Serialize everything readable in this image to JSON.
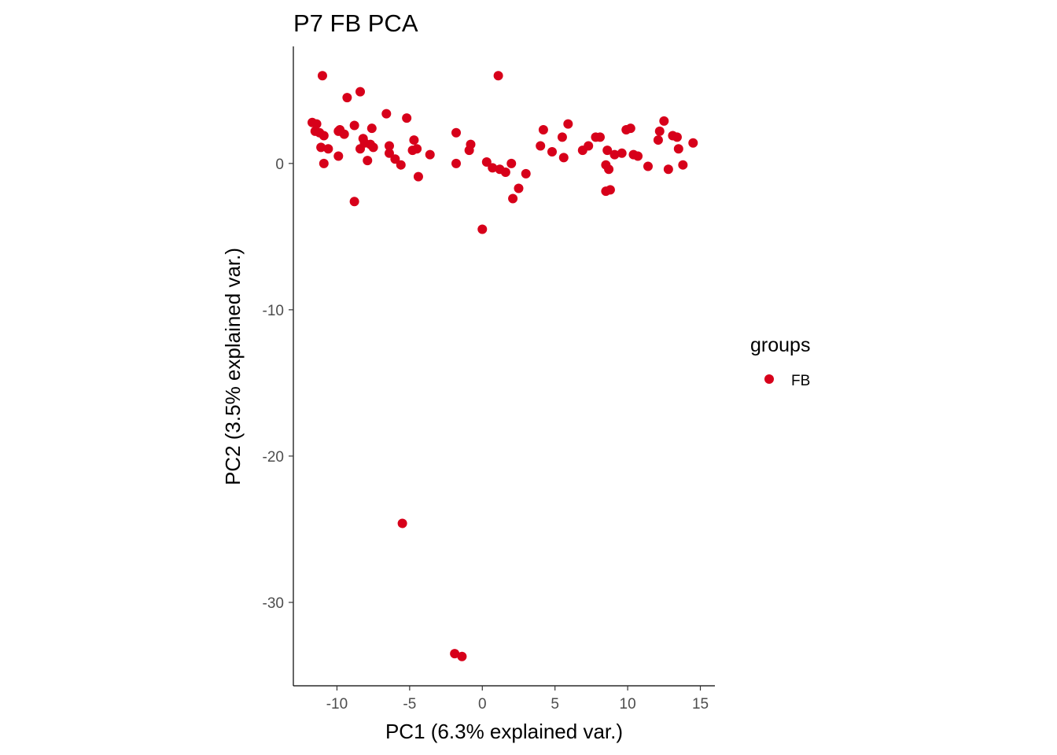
{
  "chart_data": {
    "type": "scatter",
    "title": "P7 FB PCA",
    "xlabel": "PC1 (6.3% explained var.)",
    "ylabel": "PC2 (3.5% explained var.)",
    "xlim": [
      -13,
      16
    ],
    "ylim": [
      -35.7,
      8
    ],
    "x_ticks": [
      -10,
      -5,
      0,
      5,
      10,
      15
    ],
    "y_ticks": [
      0,
      -10,
      -20,
      -30
    ],
    "x_tick_labels": [
      "-10",
      "-5",
      "0",
      "5",
      "10",
      "15"
    ],
    "y_tick_labels": [
      "0",
      "-10",
      "-20",
      "-30"
    ],
    "grid": false,
    "legend": {
      "title": "groups",
      "position": "right",
      "entries": [
        "FB"
      ]
    },
    "colors": {
      "FB": "#d7001a"
    },
    "series": [
      {
        "name": "FB",
        "points": [
          [
            -11.7,
            2.8
          ],
          [
            -11.4,
            2.7
          ],
          [
            -11.5,
            2.2
          ],
          [
            -11.2,
            2.1
          ],
          [
            -10.9,
            1.9
          ],
          [
            -11.1,
            1.1
          ],
          [
            -10.6,
            1.0
          ],
          [
            -10.9,
            0.0
          ],
          [
            -11.0,
            6.0
          ],
          [
            -9.3,
            4.5
          ],
          [
            -8.4,
            4.9
          ],
          [
            -9.9,
            2.2
          ],
          [
            -9.8,
            2.3
          ],
          [
            -9.5,
            2.0
          ],
          [
            -8.8,
            2.6
          ],
          [
            -8.2,
            1.7
          ],
          [
            -8.1,
            1.4
          ],
          [
            -7.7,
            1.3
          ],
          [
            -7.6,
            2.4
          ],
          [
            -7.5,
            1.1
          ],
          [
            -8.4,
            1.0
          ],
          [
            -9.9,
            0.5
          ],
          [
            -7.9,
            0.2
          ],
          [
            -8.8,
            -2.6
          ],
          [
            -6.6,
            3.4
          ],
          [
            -6.4,
            1.2
          ],
          [
            -6.4,
            0.7
          ],
          [
            -6.0,
            0.3
          ],
          [
            -5.6,
            -0.1
          ],
          [
            -5.2,
            3.1
          ],
          [
            -4.7,
            1.6
          ],
          [
            -4.8,
            0.9
          ],
          [
            -4.5,
            1.0
          ],
          [
            -4.4,
            -0.9
          ],
          [
            -3.6,
            0.6
          ],
          [
            -1.8,
            2.1
          ],
          [
            -1.8,
            0.0
          ],
          [
            -0.9,
            0.9
          ],
          [
            -0.8,
            1.3
          ],
          [
            0.3,
            0.1
          ],
          [
            0.7,
            -0.3
          ],
          [
            1.2,
            -0.4
          ],
          [
            1.6,
            -0.6
          ],
          [
            2.0,
            0.0
          ],
          [
            2.1,
            -2.4
          ],
          [
            2.5,
            -1.7
          ],
          [
            3.0,
            -0.7
          ],
          [
            1.1,
            6.0
          ],
          [
            0.0,
            -4.5
          ],
          [
            -5.5,
            -24.6
          ],
          [
            -1.9,
            -33.5
          ],
          [
            -1.4,
            -33.7
          ],
          [
            4.0,
            1.2
          ],
          [
            4.2,
            2.3
          ],
          [
            4.8,
            0.8
          ],
          [
            5.5,
            1.8
          ],
          [
            5.6,
            0.4
          ],
          [
            5.9,
            2.7
          ],
          [
            6.9,
            0.9
          ],
          [
            7.3,
            1.2
          ],
          [
            7.8,
            1.8
          ],
          [
            8.1,
            1.8
          ],
          [
            8.6,
            0.9
          ],
          [
            8.5,
            -0.1
          ],
          [
            8.7,
            -0.4
          ],
          [
            8.5,
            -1.9
          ],
          [
            8.8,
            -1.8
          ],
          [
            9.1,
            0.6
          ],
          [
            9.6,
            0.7
          ],
          [
            9.9,
            2.3
          ],
          [
            10.2,
            2.4
          ],
          [
            10.4,
            0.6
          ],
          [
            10.7,
            0.5
          ],
          [
            11.4,
            -0.2
          ],
          [
            12.1,
            1.6
          ],
          [
            12.2,
            2.2
          ],
          [
            12.5,
            2.9
          ],
          [
            12.8,
            -0.4
          ],
          [
            13.1,
            1.9
          ],
          [
            13.4,
            1.8
          ],
          [
            13.5,
            1.0
          ],
          [
            13.8,
            -0.1
          ],
          [
            14.5,
            1.4
          ]
        ]
      }
    ]
  }
}
